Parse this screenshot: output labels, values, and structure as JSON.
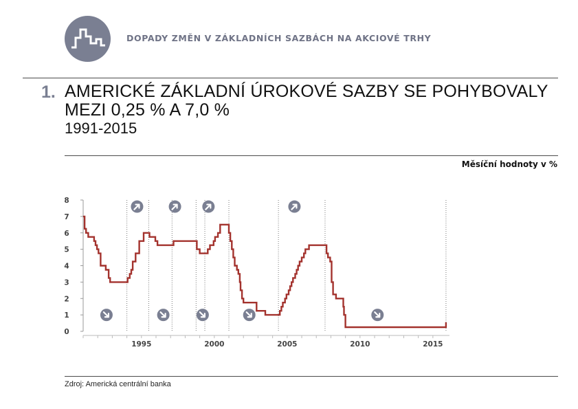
{
  "header": {
    "section_title": "DOPADY ZMĚN V ZÁKLADNÍCH SAZBÁCH NA AKCIOVÉ TRHY"
  },
  "figure": {
    "number": "1.",
    "title_line1": "AMERICKÉ ZÁKLADNÍ ÚROKOVÉ SAZBY SE POHYBOVALY",
    "title_line2": "MEZI 0,25 % A 7,0 %",
    "period": "1991-2015",
    "unit_note": "Měsíční hodnoty v %",
    "source": "Zdroj: Americká centrální banka"
  },
  "colors": {
    "line": "#a3322d",
    "icon_bg": "#7a7f92",
    "logo_bg": "#7a7f92",
    "header_text": "#6f7386"
  },
  "chart_data": {
    "type": "line",
    "title": "",
    "xlabel": "",
    "ylabel": "",
    "xlim": [
      1991.0,
      2015.95
    ],
    "ylim": [
      0,
      8
    ],
    "yticks": [
      0,
      1,
      2,
      3,
      4,
      5,
      6,
      7,
      8
    ],
    "xticks": [
      1995,
      2000,
      2005,
      2010,
      2015
    ],
    "yticklabels": [
      "0",
      "1",
      "2",
      "3",
      "4",
      "5",
      "6",
      "7",
      "8"
    ],
    "xticklabels": [
      "1995",
      "2000",
      "2005",
      "2010",
      "2015"
    ],
    "grid": "vertical dotted lines at turning points",
    "turning_points": [
      1994.0,
      1995.5,
      1997.1,
      1998.75,
      1999.35,
      2001.0,
      2004.4,
      2007.6,
      2015.9
    ],
    "markers": [
      {
        "direction": "down",
        "x": 1992.6,
        "y": 1.0
      },
      {
        "direction": "up",
        "x": 1994.7,
        "y": 7.6
      },
      {
        "direction": "down",
        "x": 1996.5,
        "y": 1.0
      },
      {
        "direction": "up",
        "x": 1997.3,
        "y": 7.6
      },
      {
        "direction": "down",
        "x": 1999.2,
        "y": 1.0
      },
      {
        "direction": "up",
        "x": 1999.6,
        "y": 7.6
      },
      {
        "direction": "down",
        "x": 2002.4,
        "y": 1.0
      },
      {
        "direction": "up",
        "x": 2005.5,
        "y": 7.6
      },
      {
        "direction": "down",
        "x": 2011.2,
        "y": 1.0
      }
    ],
    "series": [
      {
        "steps": [
          [
            1991.0,
            7.0
          ],
          [
            1991.1,
            6.25
          ],
          [
            1991.2,
            6.0
          ],
          [
            1991.35,
            5.75
          ],
          [
            1991.75,
            5.5
          ],
          [
            1991.85,
            5.25
          ],
          [
            1991.95,
            5.0
          ],
          [
            1992.05,
            4.75
          ],
          [
            1992.2,
            4.0
          ],
          [
            1992.55,
            3.75
          ],
          [
            1992.75,
            3.25
          ],
          [
            1992.85,
            3.0
          ],
          [
            1994.05,
            3.25
          ],
          [
            1994.2,
            3.5
          ],
          [
            1994.3,
            3.75
          ],
          [
            1994.4,
            4.25
          ],
          [
            1994.6,
            4.75
          ],
          [
            1994.85,
            5.5
          ],
          [
            1995.15,
            6.0
          ],
          [
            1995.55,
            5.75
          ],
          [
            1995.95,
            5.5
          ],
          [
            1996.1,
            5.25
          ],
          [
            1997.2,
            5.5
          ],
          [
            1998.8,
            5.0
          ],
          [
            1999.0,
            4.75
          ],
          [
            1999.55,
            5.0
          ],
          [
            1999.7,
            5.25
          ],
          [
            1999.95,
            5.5
          ],
          [
            2000.05,
            5.75
          ],
          [
            2000.25,
            6.0
          ],
          [
            2000.4,
            6.5
          ],
          [
            2001.0,
            6.0
          ],
          [
            2001.1,
            5.5
          ],
          [
            2001.2,
            5.0
          ],
          [
            2001.3,
            4.5
          ],
          [
            2001.4,
            4.0
          ],
          [
            2001.55,
            3.75
          ],
          [
            2001.65,
            3.5
          ],
          [
            2001.75,
            3.0
          ],
          [
            2001.8,
            2.5
          ],
          [
            2001.9,
            2.0
          ],
          [
            2002.0,
            1.75
          ],
          [
            2002.9,
            1.25
          ],
          [
            2003.5,
            1.0
          ],
          [
            2004.5,
            1.25
          ],
          [
            2004.6,
            1.5
          ],
          [
            2004.7,
            1.75
          ],
          [
            2004.85,
            2.0
          ],
          [
            2004.95,
            2.25
          ],
          [
            2005.1,
            2.5
          ],
          [
            2005.2,
            2.75
          ],
          [
            2005.3,
            3.0
          ],
          [
            2005.4,
            3.25
          ],
          [
            2005.55,
            3.5
          ],
          [
            2005.65,
            3.75
          ],
          [
            2005.75,
            4.0
          ],
          [
            2005.85,
            4.25
          ],
          [
            2006.0,
            4.5
          ],
          [
            2006.15,
            4.75
          ],
          [
            2006.25,
            5.0
          ],
          [
            2006.5,
            5.25
          ],
          [
            2007.7,
            4.75
          ],
          [
            2007.8,
            4.5
          ],
          [
            2007.95,
            4.25
          ],
          [
            2008.05,
            3.0
          ],
          [
            2008.15,
            2.25
          ],
          [
            2008.35,
            2.0
          ],
          [
            2008.85,
            1.5
          ],
          [
            2008.9,
            1.0
          ],
          [
            2009.0,
            0.25
          ],
          [
            2015.9,
            0.5
          ]
        ],
        "end": 2015.95
      }
    ]
  }
}
